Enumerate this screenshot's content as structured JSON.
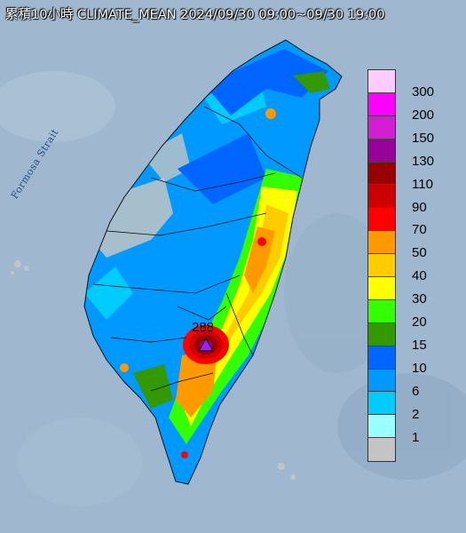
{
  "title": "累積10小時 CLIMATE_MEAN 2024/09/30 09:00~09/30 19:00",
  "strait_label": "Formosa Strait",
  "max_station": {
    "value": "288"
  },
  "legend": {
    "levels": [
      {
        "label": "300",
        "color": "#ffccff"
      },
      {
        "label": "200",
        "color": "#ff00ff"
      },
      {
        "label": "150",
        "color": "#d21fd2"
      },
      {
        "label": "130",
        "color": "#990099"
      },
      {
        "label": "110",
        "color": "#990000"
      },
      {
        "label": "90",
        "color": "#cc0000"
      },
      {
        "label": "70",
        "color": "#ff0000"
      },
      {
        "label": "50",
        "color": "#ff9900"
      },
      {
        "label": "40",
        "color": "#ffcc00"
      },
      {
        "label": "30",
        "color": "#ffff00"
      },
      {
        "label": "20",
        "color": "#33ff00"
      },
      {
        "label": "15",
        "color": "#339900"
      },
      {
        "label": "10",
        "color": "#0066ff"
      },
      {
        "label": "6",
        "color": "#0099ff"
      },
      {
        "label": "2",
        "color": "#00ccff"
      },
      {
        "label": "1",
        "color": "#99ffff"
      },
      {
        "label": "",
        "color": "#c4c4c4"
      }
    ]
  }
}
